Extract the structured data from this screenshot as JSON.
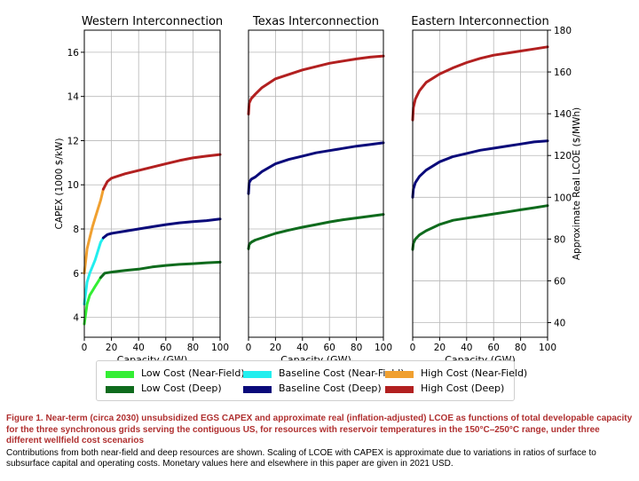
{
  "chart_data": [
    {
      "type": "line",
      "title": "Western Interconnection",
      "xlabel": "Capacity (GW)",
      "ylabel": "CAPEX (1000 $/kW)",
      "xlim": [
        0,
        100
      ],
      "ylim": [
        3.1,
        17
      ],
      "xticks": [
        0,
        20,
        40,
        60,
        80,
        100
      ],
      "yticks": [
        4,
        6,
        8,
        10,
        12,
        14,
        16
      ],
      "grid": true,
      "series": [
        {
          "name": "Low Cost (Near-Field)",
          "color": "#33ee33",
          "x": [
            0,
            2,
            4,
            6,
            8,
            10,
            12
          ],
          "y": [
            3.7,
            4.6,
            5.0,
            5.2,
            5.4,
            5.6,
            5.8
          ]
        },
        {
          "name": "Low Cost (Deep)",
          "color": "#0f6b1d",
          "x": [
            12,
            15,
            20,
            30,
            40,
            50,
            60,
            70,
            80,
            90,
            100
          ],
          "y": [
            5.8,
            6.0,
            6.05,
            6.12,
            6.18,
            6.28,
            6.35,
            6.4,
            6.43,
            6.47,
            6.5
          ]
        },
        {
          "name": "Baseline Cost (Near-Field)",
          "color": "#22eeee",
          "x": [
            0,
            2,
            4,
            6,
            8,
            10,
            12,
            14
          ],
          "y": [
            4.6,
            5.6,
            6.0,
            6.3,
            6.6,
            7.0,
            7.4,
            7.6
          ]
        },
        {
          "name": "Baseline Cost (Deep)",
          "color": "#0a0a7a",
          "x": [
            14,
            17,
            20,
            30,
            40,
            50,
            60,
            70,
            80,
            90,
            100
          ],
          "y": [
            7.6,
            7.75,
            7.8,
            7.9,
            8.0,
            8.1,
            8.2,
            8.28,
            8.33,
            8.38,
            8.45
          ]
        },
        {
          "name": "High Cost (Near-Field)",
          "color": "#f0a030",
          "x": [
            0,
            2,
            4,
            6,
            8,
            10,
            12,
            14
          ],
          "y": [
            6.0,
            7.1,
            7.6,
            8.1,
            8.5,
            8.9,
            9.3,
            9.8
          ]
        },
        {
          "name": "High Cost (Deep)",
          "color": "#b22020",
          "x": [
            14,
            17,
            20,
            30,
            40,
            50,
            60,
            70,
            80,
            90,
            100
          ],
          "y": [
            9.8,
            10.15,
            10.3,
            10.5,
            10.65,
            10.8,
            10.95,
            11.1,
            11.22,
            11.3,
            11.37
          ]
        }
      ]
    },
    {
      "type": "line",
      "title": "Texas Interconnection",
      "xlabel": "Capacity (GW)",
      "xlim": [
        0,
        100
      ],
      "ylim": [
        3.1,
        17
      ],
      "xticks": [
        0,
        20,
        40,
        60,
        80,
        100
      ],
      "grid": true,
      "series": [
        {
          "name": "Low Cost (Deep)",
          "color": "#0f6b1d",
          "x": [
            0,
            0.5,
            2,
            5,
            10,
            20,
            30,
            40,
            50,
            60,
            70,
            80,
            90,
            100
          ],
          "y": [
            7.1,
            7.3,
            7.4,
            7.5,
            7.6,
            7.8,
            7.95,
            8.08,
            8.2,
            8.32,
            8.42,
            8.5,
            8.58,
            8.66
          ]
        },
        {
          "name": "Baseline Cost (Deep)",
          "color": "#0a0a7a",
          "x": [
            0,
            0.5,
            2,
            5,
            10,
            20,
            30,
            40,
            50,
            60,
            70,
            80,
            90,
            100
          ],
          "y": [
            9.6,
            10.1,
            10.25,
            10.35,
            10.6,
            10.95,
            11.15,
            11.3,
            11.45,
            11.55,
            11.65,
            11.75,
            11.82,
            11.9
          ]
        },
        {
          "name": "High Cost (Deep)",
          "color": "#b22020",
          "x": [
            0,
            0.5,
            2,
            5,
            10,
            20,
            30,
            40,
            50,
            60,
            70,
            80,
            90,
            100
          ],
          "y": [
            13.2,
            13.7,
            13.9,
            14.1,
            14.4,
            14.8,
            15.0,
            15.2,
            15.35,
            15.5,
            15.6,
            15.7,
            15.78,
            15.83
          ]
        }
      ]
    },
    {
      "type": "line",
      "title": "Eastern Interconnection",
      "xlabel": "Capacity (GW)",
      "ylabel": "Approximate Real LCOE ($/MWh)",
      "xlim": [
        0,
        100
      ],
      "ylim": [
        33,
        180
      ],
      "xticks": [
        0,
        20,
        40,
        60,
        80,
        100
      ],
      "yticks": [
        40,
        60,
        80,
        100,
        120,
        140,
        160,
        180
      ],
      "grid": true,
      "series": [
        {
          "name": "Low Cost (Deep)",
          "color": "#0f6b1d",
          "x": [
            0,
            0.5,
            2,
            5,
            10,
            20,
            30,
            40,
            50,
            60,
            70,
            80,
            90,
            100
          ],
          "y": [
            75,
            78,
            80,
            82,
            84,
            87,
            89,
            90,
            91,
            92,
            93,
            94,
            95,
            96
          ]
        },
        {
          "name": "Baseline Cost (Deep)",
          "color": "#0a0a7a",
          "x": [
            0,
            0.5,
            2,
            5,
            10,
            20,
            30,
            40,
            50,
            60,
            70,
            80,
            90,
            100
          ],
          "y": [
            100,
            104,
            107,
            110,
            113,
            117,
            119.5,
            121,
            122.5,
            123.5,
            124.5,
            125.5,
            126.5,
            127
          ]
        },
        {
          "name": "High Cost (Deep)",
          "color": "#b22020",
          "x": [
            0,
            0.5,
            2,
            5,
            10,
            20,
            30,
            40,
            50,
            60,
            70,
            80,
            90,
            100
          ],
          "y": [
            137,
            143,
            147,
            151,
            155,
            159,
            162,
            164.5,
            166.5,
            168,
            169,
            170,
            171,
            172
          ]
        }
      ]
    }
  ],
  "legend": {
    "items": [
      {
        "label": "Low Cost (Near-Field)",
        "color": "#33ee33"
      },
      {
        "label": "Baseline Cost (Near-Field)",
        "color": "#22eeee"
      },
      {
        "label": "High Cost (Near-Field)",
        "color": "#f0a030"
      },
      {
        "label": "Low Cost (Deep)",
        "color": "#0f6b1d"
      },
      {
        "label": "Baseline Cost (Deep)",
        "color": "#0a0a7a"
      },
      {
        "label": "High Cost (Deep)",
        "color": "#b22020"
      }
    ]
  },
  "caption": {
    "title": "Figure 1.  Near-term (circa 2030) unsubsidized EGS CAPEX and approximate real (inflation-adjusted) LCOE as functions of total developable capacity for the three synchronous grids serving the contiguous US, for resources with reservoir temperatures in the 150°C–250°C range, under three different wellfield cost scenarios",
    "note": "Contributions from both near-field and deep resources are shown. Scaling of LCOE with CAPEX is approximate due to variations in ratios of surface to subsurface capital and operating costs. Monetary values here and elsewhere in this paper are given in 2021 USD."
  },
  "colors": {
    "caption_title": "#b03030",
    "grid": "#b8b8b8"
  }
}
